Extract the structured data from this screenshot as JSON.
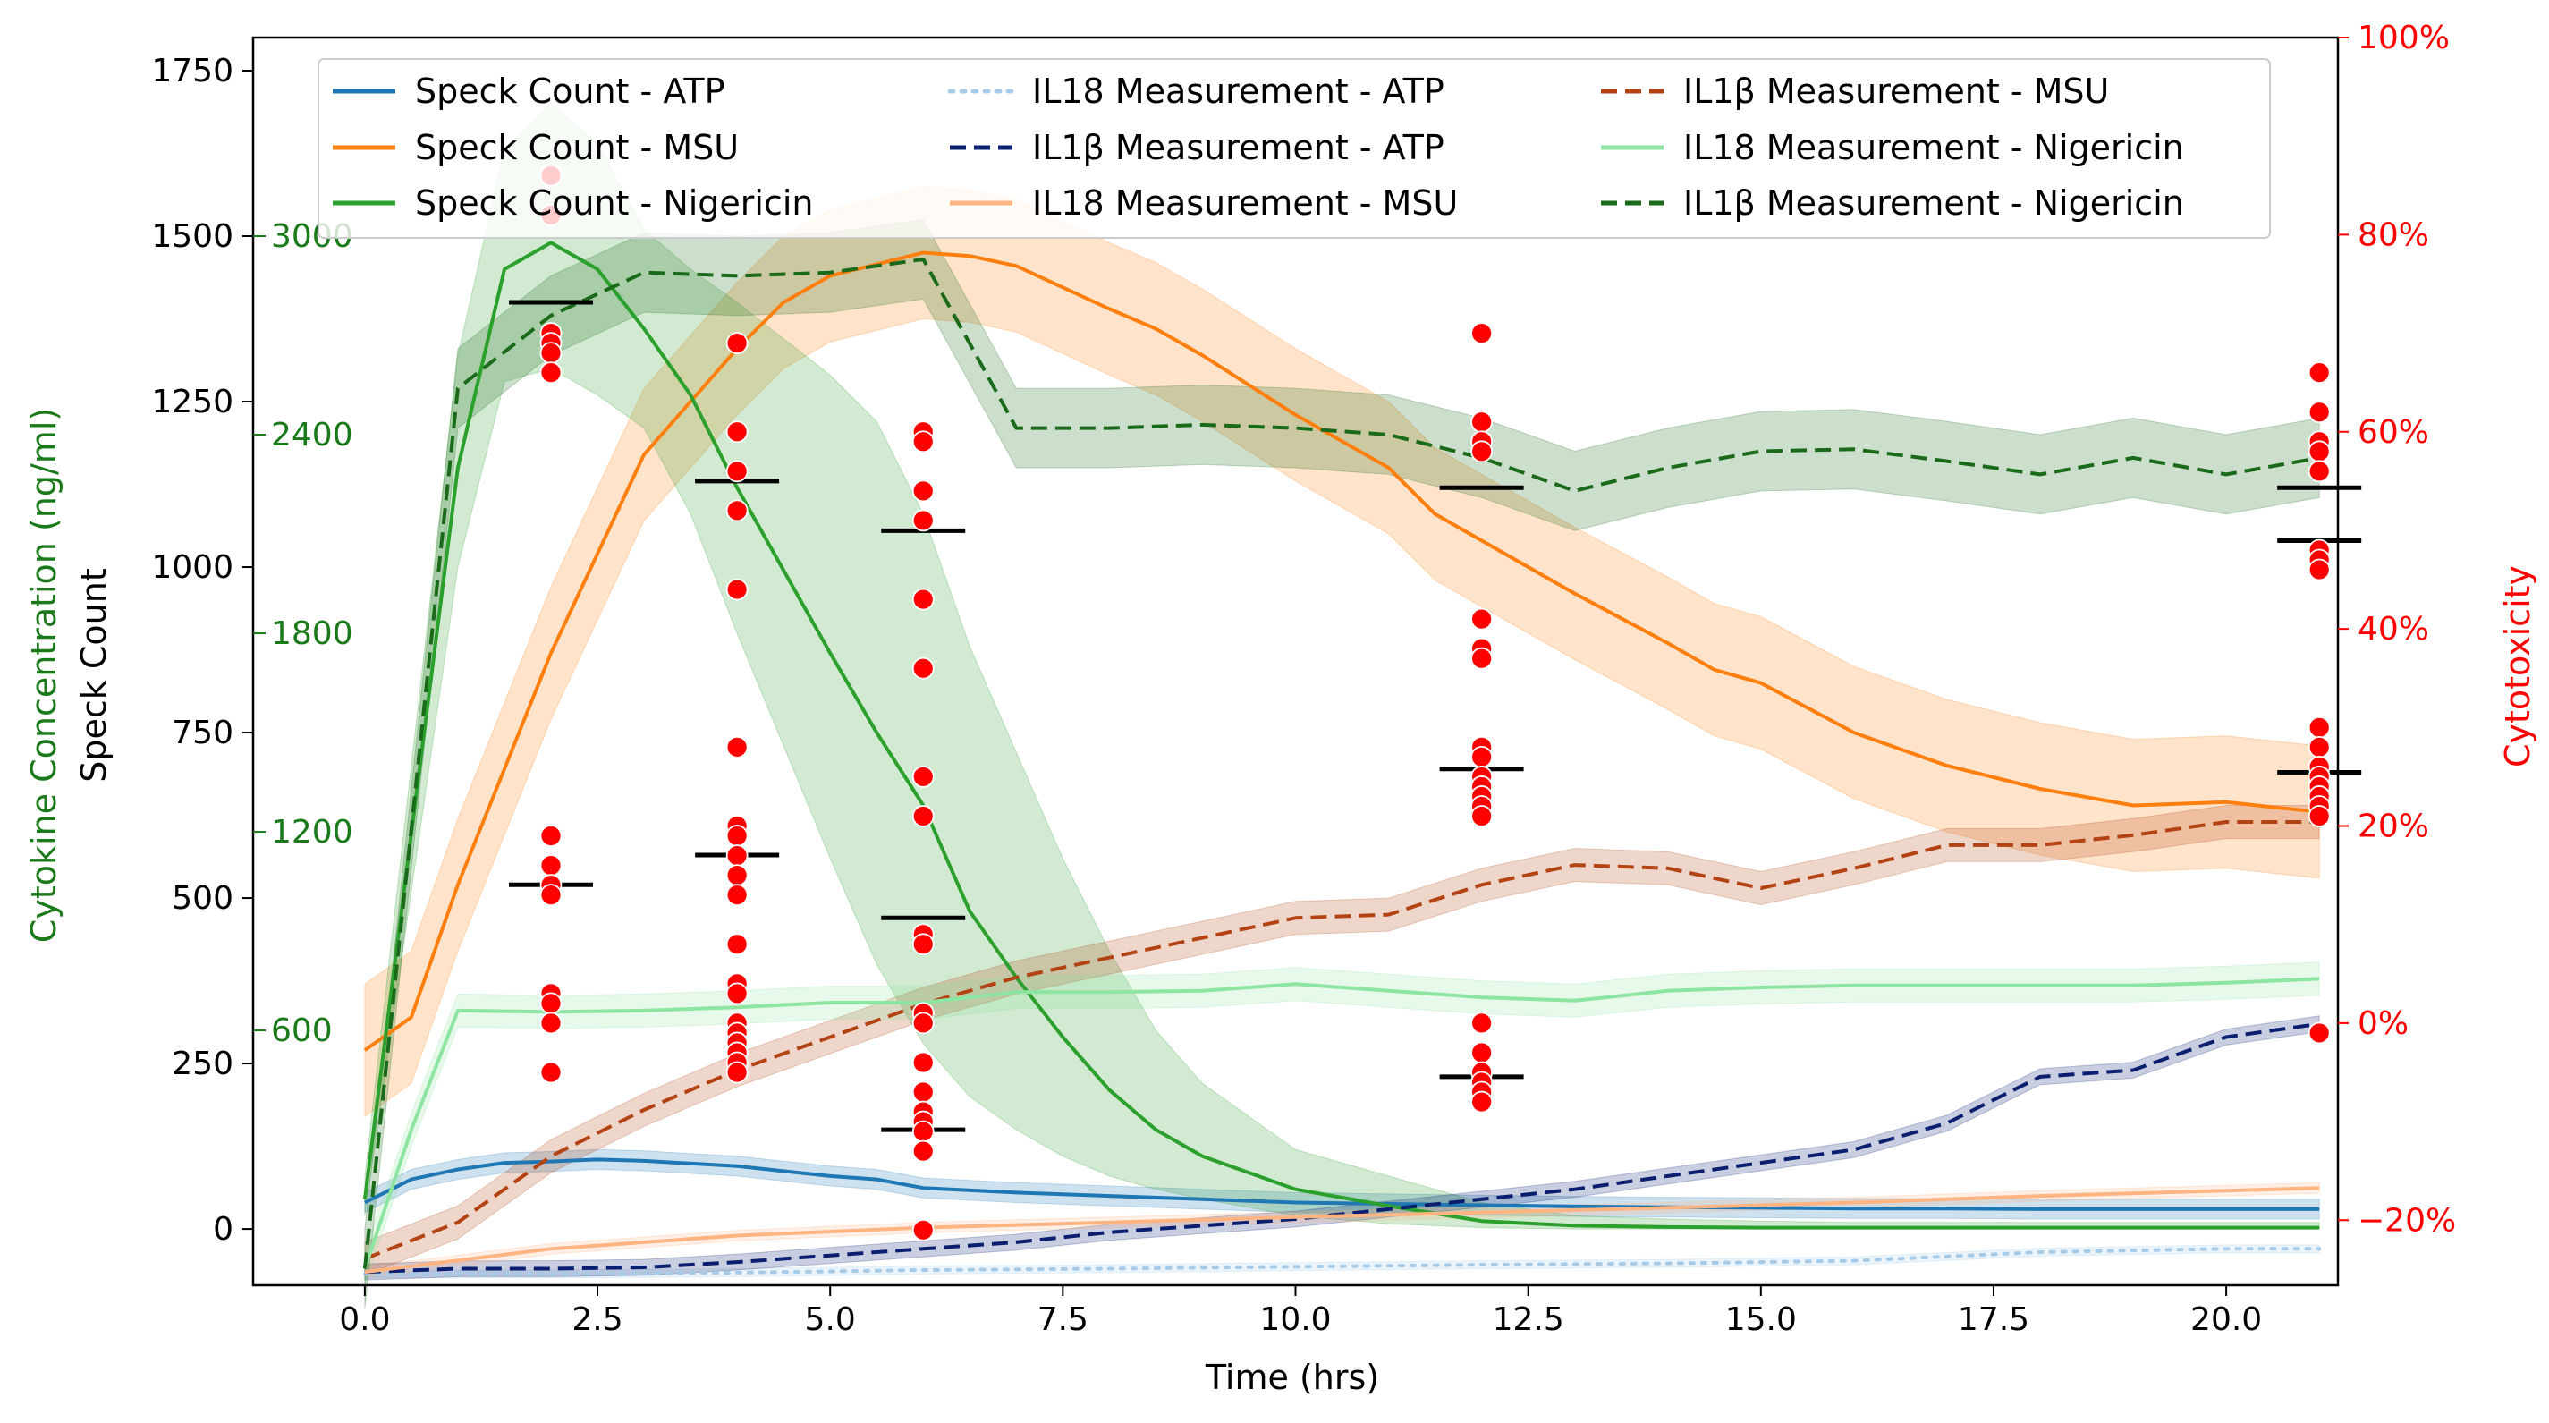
{
  "chart_data": {
    "type": "line",
    "xlabel": "Time (hrs)",
    "ylabel": "Speck Count",
    "ylabel_cytokine": "Cytokine Concentration (ng/ml)",
    "ylabel_right": "Cytotoxicity",
    "xlim": [
      -1.2,
      21.2
    ],
    "ylim": [
      -85,
      1800
    ],
    "ylim_right": [
      -26.6,
      100
    ],
    "ylim_cytokine": [
      -170,
      3600
    ],
    "xticks": [
      0.0,
      2.5,
      5.0,
      7.5,
      10.0,
      12.5,
      15.0,
      17.5,
      20.0
    ],
    "xtick_labels": [
      "0.0",
      "2.5",
      "5.0",
      "7.5",
      "10.0",
      "12.5",
      "15.0",
      "17.5",
      "20.0"
    ],
    "yticks": [
      0,
      250,
      500,
      750,
      1000,
      1250,
      1500,
      1750
    ],
    "ytick_labels": [
      "0",
      "250",
      "500",
      "750",
      "1000",
      "1250",
      "1500",
      "1750"
    ],
    "yticks_right": [
      -20,
      0,
      20,
      40,
      60,
      80,
      100
    ],
    "ytick_labels_right": [
      "−20%",
      "0%",
      "20%",
      "40%",
      "60%",
      "80%",
      "100%"
    ],
    "cytokine_ticks": [
      600,
      1200,
      1800,
      2400,
      3000
    ],
    "cytokine_tick_labels": [
      "600",
      "1200",
      "1800",
      "2400",
      "3000"
    ],
    "legend_position": "top",
    "colors": {
      "speck_atp": "#1f77b4",
      "speck_msu": "#ff7f0e",
      "speck_nig": "#2ca02c",
      "il18_atp": "#a6cbe8",
      "il1b_atp": "#0a1f70",
      "il18_msu": "#ffb482",
      "il1b_msu": "#b34312",
      "il18_nig": "#8de5a1",
      "il1b_nig": "#196a19",
      "cytotoxicity_point": "#ff0000",
      "cytokine_axis": "#1a7a1a",
      "right_axis": "#ff0000"
    },
    "series": [
      {
        "name": "Speck Count - ATP",
        "axis": "speck",
        "style": "solid",
        "width": 4,
        "color_key": "speck_atp",
        "x": [
          0,
          0.5,
          1,
          1.5,
          2,
          2.5,
          3,
          4,
          5,
          5.5,
          6,
          7,
          8,
          9,
          10,
          11,
          12,
          13,
          14,
          15,
          16,
          17,
          18,
          19,
          20,
          21
        ],
        "y": [
          40,
          75,
          90,
          100,
          102,
          105,
          103,
          95,
          80,
          75,
          62,
          55,
          50,
          45,
          40,
          38,
          36,
          34,
          33,
          32,
          31,
          31,
          30,
          30,
          30,
          30
        ],
        "band": 15
      },
      {
        "name": "Speck Count - MSU",
        "axis": "speck",
        "style": "solid",
        "width": 4,
        "color_key": "speck_msu",
        "x": [
          0,
          0.5,
          1,
          2,
          3,
          4,
          4.5,
          5,
          6,
          6.5,
          7,
          8,
          8.5,
          9,
          10,
          11,
          11.5,
          12,
          13,
          14,
          14.5,
          15,
          16,
          17,
          18,
          19,
          20,
          21
        ],
        "y": [
          270,
          320,
          520,
          870,
          1170,
          1330,
          1400,
          1440,
          1475,
          1470,
          1455,
          1390,
          1360,
          1320,
          1230,
          1150,
          1080,
          1040,
          960,
          885,
          845,
          825,
          750,
          700,
          665,
          640,
          645,
          630
        ],
        "band": 100
      },
      {
        "name": "Speck Count - Nigericin",
        "axis": "speck",
        "style": "solid",
        "width": 4,
        "color_key": "speck_nig",
        "x": [
          0,
          1,
          1.5,
          2,
          2.5,
          3,
          3.5,
          4,
          5,
          5.5,
          6,
          6.5,
          7,
          7.5,
          8,
          8.5,
          9,
          10,
          11,
          12,
          13,
          14,
          15,
          16,
          17,
          18,
          19,
          20,
          21
        ],
        "y": [
          45,
          1150,
          1450,
          1490,
          1450,
          1360,
          1260,
          1120,
          870,
          750,
          640,
          480,
          380,
          290,
          210,
          150,
          110,
          60,
          35,
          12,
          5,
          3,
          2,
          2,
          2,
          2,
          2,
          2,
          2
        ],
        "band_upper": [
          80,
          1320,
          1630,
          1700,
          1640,
          1510,
          1450,
          1400,
          1290,
          1220,
          1080,
          880,
          720,
          560,
          420,
          300,
          220,
          120,
          80,
          40,
          20,
          15,
          12,
          10,
          10,
          10,
          10,
          10,
          10
        ],
        "band_lower": [
          20,
          1000,
          1280,
          1300,
          1260,
          1210,
          1080,
          900,
          560,
          400,
          280,
          200,
          150,
          110,
          80,
          60,
          45,
          20,
          8,
          2,
          0,
          0,
          0,
          0,
          0,
          0,
          0,
          0,
          0
        ]
      },
      {
        "name": "IL18 Measurement - ATP",
        "axis": "speck",
        "style": "dotted",
        "width": 4,
        "color_key": "il18_atp",
        "x": [
          0,
          2,
          4,
          6,
          8,
          10,
          12,
          14,
          16,
          18,
          20,
          21
        ],
        "y": [
          -68,
          -68,
          -66,
          -62,
          -60,
          -57,
          -54,
          -52,
          -48,
          -35,
          -30,
          -30
        ],
        "band": 6
      },
      {
        "name": "IL1β Measurement - ATP",
        "axis": "speck",
        "style": "dashed",
        "width": 4,
        "color_key": "il1b_atp",
        "x": [
          0,
          1,
          2,
          3,
          4,
          5,
          6,
          7,
          8,
          9,
          10,
          11,
          12,
          13,
          14,
          15,
          16,
          17,
          18,
          19,
          20,
          21
        ],
        "y": [
          -65,
          -60,
          -60,
          -58,
          -50,
          -40,
          -30,
          -20,
          -5,
          5,
          15,
          30,
          45,
          60,
          80,
          100,
          120,
          160,
          230,
          240,
          290,
          310
        ],
        "band": 12
      },
      {
        "name": "IL18 Measurement - MSU",
        "axis": "speck",
        "style": "solid",
        "width": 4,
        "color_key": "il18_msu",
        "x": [
          0,
          2,
          4,
          6,
          8,
          10,
          12,
          14,
          16,
          18,
          20,
          21
        ],
        "y": [
          -65,
          -30,
          -10,
          2,
          10,
          18,
          25,
          32,
          40,
          50,
          58,
          62
        ],
        "band": 8
      },
      {
        "name": "IL1β Measurement - MSU",
        "axis": "speck",
        "style": "dashed",
        "width": 4,
        "color_key": "il1b_msu",
        "x": [
          0,
          1,
          2,
          3,
          4,
          5,
          6,
          7,
          8,
          9,
          10,
          11,
          12,
          13,
          14,
          15,
          16,
          17,
          18,
          19,
          20,
          21
        ],
        "y": [
          -45,
          10,
          110,
          180,
          240,
          290,
          340,
          380,
          410,
          440,
          470,
          475,
          520,
          550,
          545,
          515,
          545,
          580,
          580,
          595,
          615,
          615
        ],
        "band": 25
      },
      {
        "name": "IL18 Measurement - Nigericin",
        "axis": "speck",
        "style": "solid",
        "width": 4,
        "color_key": "il18_nig",
        "x": [
          0,
          0.5,
          1,
          2,
          3,
          4,
          5,
          6,
          7,
          8,
          9,
          10,
          11,
          12,
          13,
          14,
          15,
          16,
          17,
          18,
          19,
          20,
          21
        ],
        "y": [
          -60,
          150,
          330,
          328,
          330,
          335,
          342,
          342,
          358,
          358,
          360,
          370,
          360,
          350,
          345,
          360,
          365,
          368,
          368,
          368,
          368,
          372,
          378
        ],
        "band": 25
      },
      {
        "name": "IL1β Measurement - Nigericin",
        "axis": "speck",
        "style": "dashed",
        "width": 4,
        "color_key": "il1b_nig",
        "x": [
          0,
          1,
          2,
          3,
          4,
          5,
          6,
          7,
          8,
          9,
          10,
          11,
          12,
          13,
          14,
          15,
          16,
          17,
          18,
          19,
          20,
          21
        ],
        "y": [
          -60,
          1270,
          1380,
          1445,
          1440,
          1445,
          1465,
          1210,
          1210,
          1215,
          1210,
          1200,
          1165,
          1115,
          1150,
          1175,
          1178,
          1160,
          1140,
          1165,
          1140,
          1165
        ],
        "band": 60
      }
    ],
    "cytotoxicity_points": {
      "x": [
        2,
        2,
        2,
        2,
        2,
        2,
        2,
        2,
        2,
        2,
        2,
        2,
        2,
        2,
        4,
        4,
        4,
        4,
        4,
        4,
        4,
        4,
        4,
        4,
        4,
        4,
        4,
        4,
        4,
        4,
        4,
        4,
        4,
        4,
        6,
        6,
        6,
        6,
        6,
        6,
        6,
        6,
        6,
        6,
        6,
        6,
        6,
        6,
        6,
        6,
        6,
        6,
        6,
        12,
        12,
        12,
        12,
        12,
        12,
        12,
        12,
        12,
        12,
        12,
        12,
        12,
        12,
        12,
        12,
        12,
        12,
        12,
        12,
        21,
        21,
        21,
        21,
        21,
        21,
        21,
        21,
        21,
        21,
        21,
        21,
        21,
        21,
        21,
        21,
        21
      ],
      "y": [
        86,
        82,
        70,
        69,
        68,
        66,
        19,
        16,
        14,
        13,
        3,
        2,
        0,
        -5,
        69,
        60,
        56,
        52,
        44,
        28,
        20,
        19,
        17,
        15,
        13,
        8,
        4,
        3,
        0,
        -1,
        -2,
        -3,
        -4,
        -5,
        60,
        59,
        54,
        51,
        43,
        36,
        25,
        21,
        9,
        8,
        1,
        0,
        -4,
        -7,
        -9,
        -10,
        -11,
        -13,
        -21,
        70,
        61,
        59,
        58,
        41,
        38,
        37,
        28,
        27,
        25,
        24,
        23,
        22,
        21,
        0,
        -3,
        -5,
        -6,
        -7,
        -8,
        66,
        62,
        59,
        58,
        56,
        48,
        47,
        46,
        30,
        28,
        26,
        25,
        24,
        23,
        22,
        21,
        -1
      ]
    },
    "mean_markers": {
      "x": [
        2,
        2,
        4,
        4,
        6,
        6,
        6,
        12,
        12,
        12,
        21,
        21,
        21
      ],
      "y": [
        1400,
        520,
        1130,
        565,
        1055,
        470,
        150,
        1120,
        695,
        230,
        1120,
        1040,
        690
      ]
    },
    "legend": [
      "Speck Count - ATP",
      "IL18 Measurement - ATP",
      "IL1β Measurement - MSU",
      "Speck Count - MSU",
      "IL1β Measurement - ATP",
      "IL18 Measurement - Nigericin",
      "Speck Count - Nigericin",
      "IL18 Measurement - MSU",
      "IL1β Measurement - Nigericin"
    ]
  }
}
